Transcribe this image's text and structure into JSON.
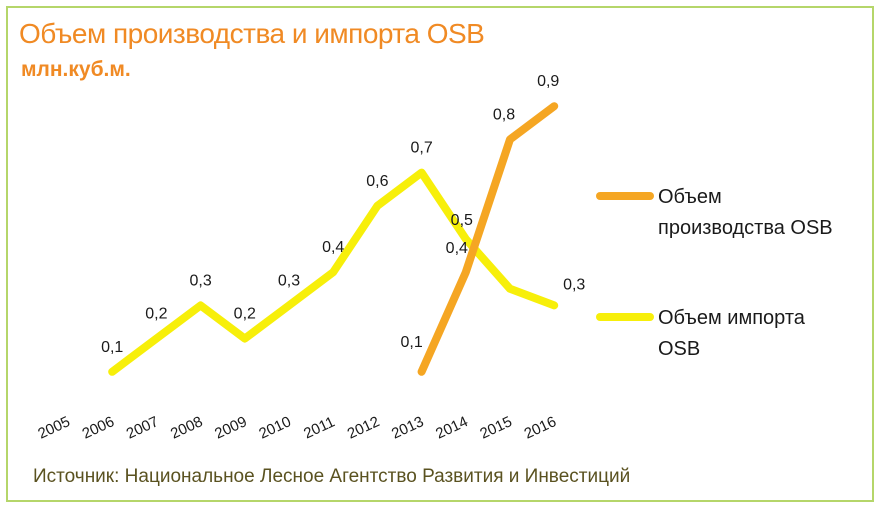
{
  "title": "Объем производства и импорта OSB",
  "subtitle": "млн.куб.м.",
  "source": "Источник: Национальное Лесное Агентство Развития и Инвестиций",
  "colors": {
    "production": "#f5a623",
    "import": "#f7ef0a",
    "title": "#f08a24",
    "border": "#b5d66a"
  },
  "chart_data": {
    "type": "line",
    "title": "Объем производства и импорта OSB",
    "ylabel": "млн.куб.м.",
    "x": [
      "2005",
      "2006",
      "2007",
      "2008",
      "2009",
      "2010",
      "2011",
      "2012",
      "2013",
      "2014",
      "2015",
      "2016"
    ],
    "ylim": [
      0,
      1.0
    ],
    "grid": false,
    "legend": "right",
    "series": [
      {
        "name": "Объем производства OSB",
        "color": "#f5a623",
        "values": [
          null,
          null,
          null,
          null,
          null,
          null,
          null,
          null,
          0.1,
          0.4,
          0.8,
          0.9
        ],
        "labels": [
          "",
          "",
          "",
          "",
          "",
          "",
          "",
          "",
          "0,1",
          "0,4",
          "0,8",
          "0,9"
        ]
      },
      {
        "name": "Объем импорта OSB",
        "color": "#f7ef0a",
        "values": [
          null,
          0.1,
          0.2,
          0.3,
          0.2,
          0.3,
          0.4,
          0.6,
          0.7,
          0.5,
          0.35,
          0.3
        ],
        "labels": [
          "",
          "0,1",
          "0,2",
          "0,3",
          "0,2",
          "0,3",
          "0,4",
          "0,6",
          "0,7",
          "0,5",
          "",
          "0,3"
        ]
      }
    ]
  }
}
